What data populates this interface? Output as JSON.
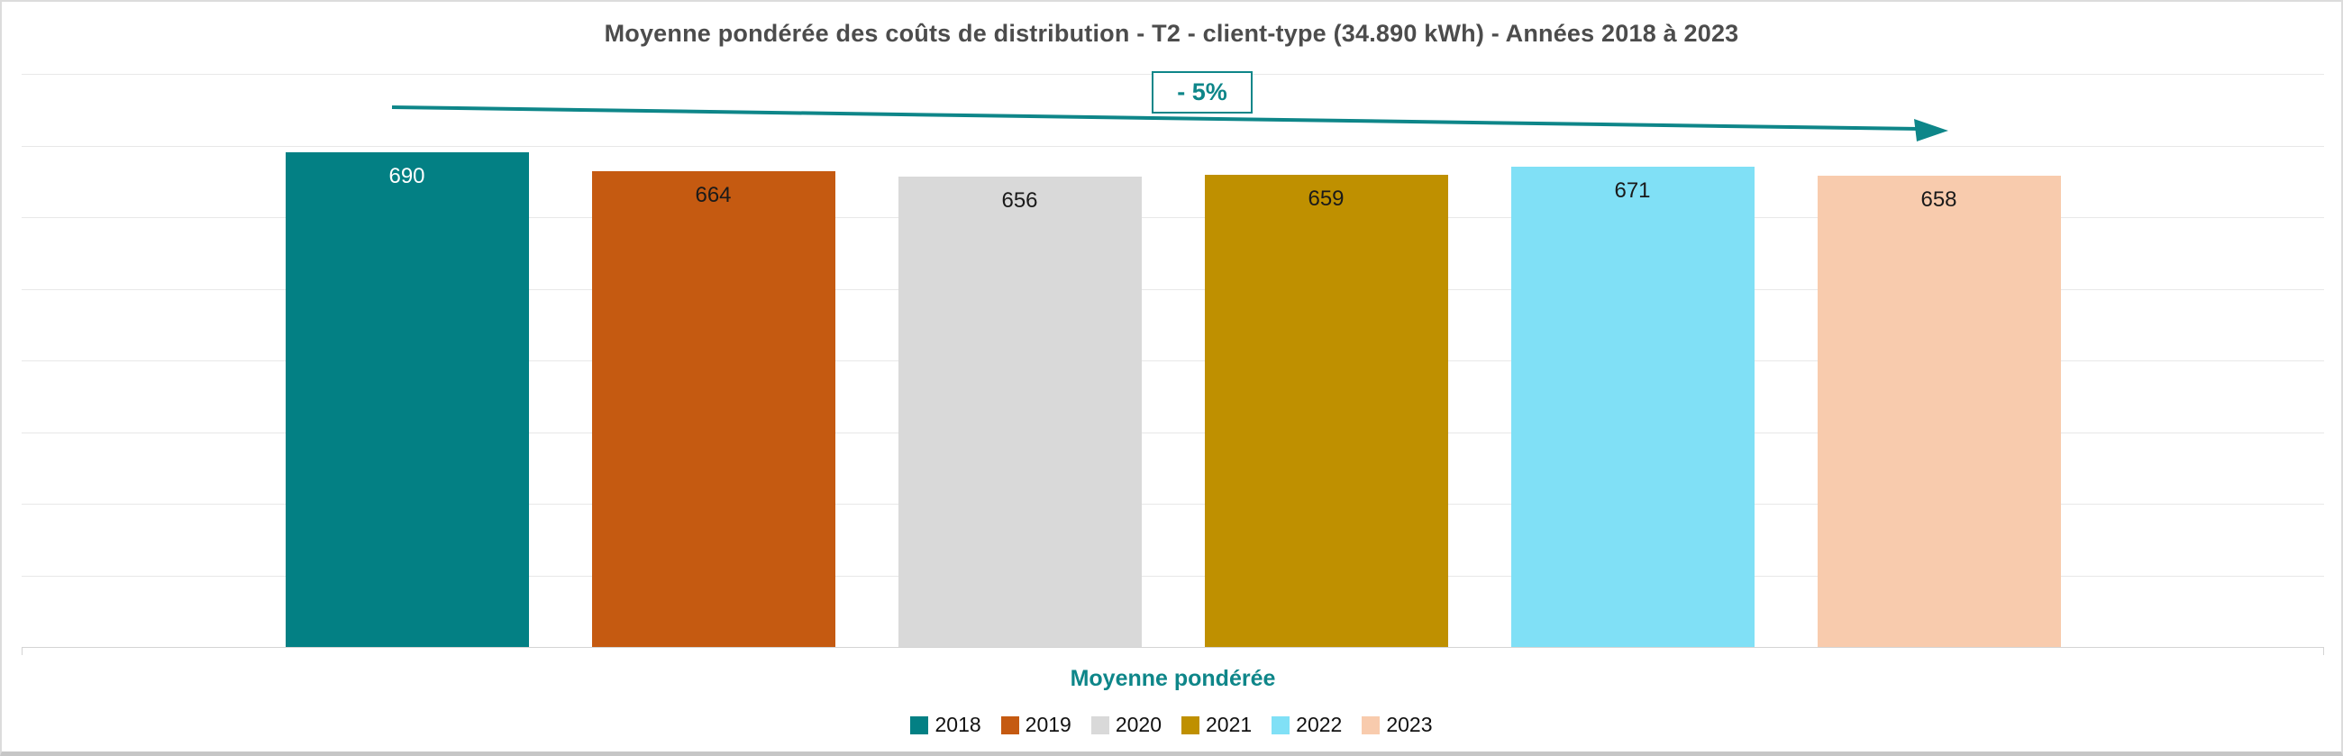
{
  "chart_data": {
    "type": "bar",
    "title": "Moyenne pondérée des coûts de distribution - T2 - client-type (34.890 kWh) - Années 2018 à 2023",
    "categories": [
      "Moyenne pondérée"
    ],
    "xlabel": "Moyenne pondérée",
    "ylabel": "",
    "ylim": [
      0,
      800
    ],
    "gridline_interval": 100,
    "grid": true,
    "y_tick_labels_shown": false,
    "legend_position": "bottom",
    "data_labels_shown": true,
    "series": [
      {
        "name": "2018",
        "values": [
          690
        ],
        "color": "#038084",
        "label_color": "#FFFFFF"
      },
      {
        "name": "2019",
        "values": [
          664
        ],
        "color": "#C55A11",
        "label_color": "#1A1A1A"
      },
      {
        "name": "2020",
        "values": [
          656
        ],
        "color": "#D9D9D9",
        "label_color": "#1A1A1A"
      },
      {
        "name": "2021",
        "values": [
          659
        ],
        "color": "#BF9000",
        "label_color": "#1A1A1A"
      },
      {
        "name": "2022",
        "values": [
          671
        ],
        "color": "#80E0F6",
        "label_color": "#1A1A1A"
      },
      {
        "name": "2023",
        "values": [
          658
        ],
        "color": "#F8CBAD",
        "label_color": "#1A1A1A"
      }
    ],
    "annotation": {
      "label": "- 5%",
      "color": "#0E8689",
      "meaning": "overall decrease from 2018 to 2023"
    }
  },
  "colors": {
    "accent_teal": "#0E8689",
    "title_text": "#4C4C4C",
    "gridline": "#E8E8E8",
    "axis_line": "#D4D4D4",
    "frame_border": "#DCDCDC"
  }
}
